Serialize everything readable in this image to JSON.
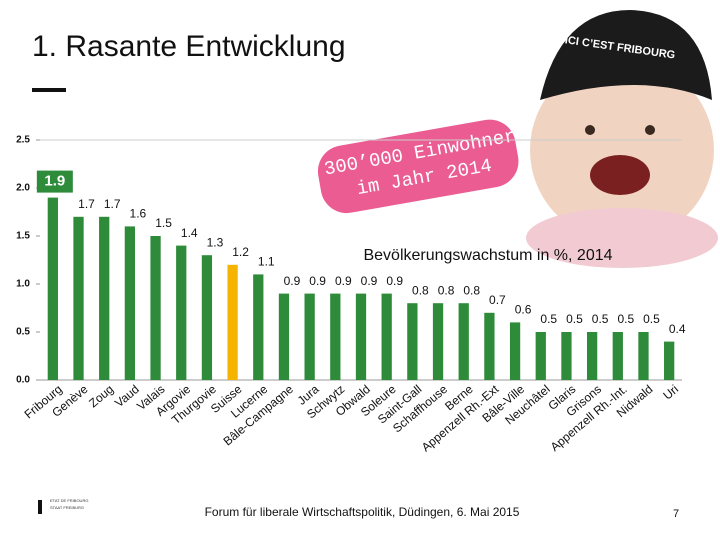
{
  "title": "1. Rasante Entwicklung",
  "callout": "300’000 Einwohner",
  "callout_line2": "im Jahr 2014",
  "cap_text": "ICI C’EST FRIBOURG",
  "logo": {
    "line1": "ETAT DE FRIBOURG",
    "line2": "STAAT FREIBURG"
  },
  "footer": "Forum für liberale Wirtschaftspolitik, Düdingen, 6. Mai 2015",
  "page_number": "7",
  "chart_data": {
    "type": "bar",
    "title": "Bevölkerungswachstum in %, 2014",
    "categories": [
      "Fribourg",
      "Genève",
      "Zoug",
      "Vaud",
      "Valais",
      "Argovie",
      "Thurgovie",
      "Suisse",
      "Lucerne",
      "Bâle-Campagne",
      "Jura",
      "Schwytz",
      "Obwald",
      "Soleure",
      "Saint-Gall",
      "Schaffhouse",
      "Berne",
      "Appenzell Rh.-Ext",
      "Bâle-Ville",
      "Neuchâtel",
      "Glaris",
      "Grisons",
      "Appenzell Rh.-Int.",
      "Nidwald",
      "Uri"
    ],
    "values": [
      1.9,
      1.7,
      1.7,
      1.6,
      1.5,
      1.4,
      1.3,
      1.2,
      1.1,
      0.9,
      0.9,
      0.9,
      0.9,
      0.9,
      0.8,
      0.8,
      0.8,
      0.7,
      0.6,
      0.5,
      0.5,
      0.5,
      0.5,
      0.5,
      0.4
    ],
    "colors": [
      "#2e8b3a",
      "#2e8b3a",
      "#2e8b3a",
      "#2e8b3a",
      "#2e8b3a",
      "#2e8b3a",
      "#2e8b3a",
      "#f5b400",
      "#2e8b3a",
      "#2e8b3a",
      "#2e8b3a",
      "#2e8b3a",
      "#2e8b3a",
      "#2e8b3a",
      "#2e8b3a",
      "#2e8b3a",
      "#2e8b3a",
      "#2e8b3a",
      "#2e8b3a",
      "#2e8b3a",
      "#2e8b3a",
      "#2e8b3a",
      "#2e8b3a",
      "#2e8b3a",
      "#2e8b3a"
    ],
    "ylim": [
      0,
      2.5
    ],
    "yticks": [
      {
        "value": 0,
        "label": "0.0"
      },
      0.5,
      {
        "value": 1,
        "label": "1.0"
      },
      1.5,
      {
        "value": 2,
        "label": "2.0"
      },
      2.5
    ],
    "grid": false
  }
}
